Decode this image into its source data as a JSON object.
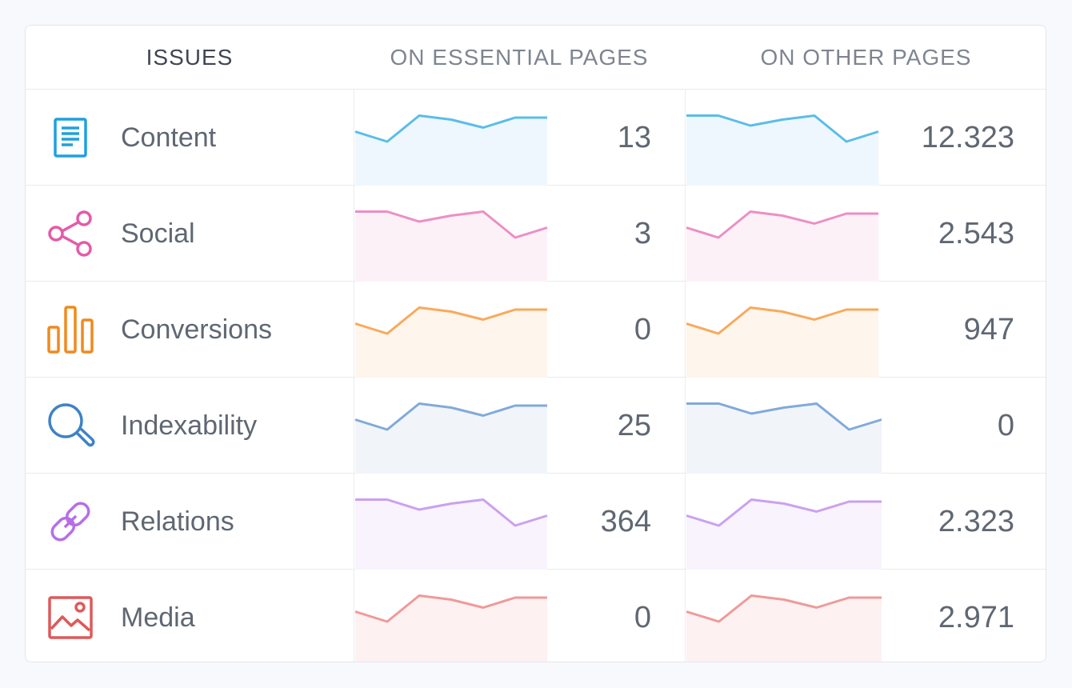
{
  "header": {
    "issues": "ISSUES",
    "essential": "ON ESSENTIAL PAGES",
    "other": "ON OTHER PAGES"
  },
  "rows": [
    {
      "label": "Content",
      "icon": "document-icon",
      "color": "#5bbde8",
      "fill": "#eef7fd",
      "essential_value": "13",
      "other_value": "12.323",
      "essential_trend": [
        0.55,
        0.3,
        0.95,
        0.85,
        0.65,
        0.9,
        0.9
      ],
      "other_trend": [
        0.95,
        0.95,
        0.7,
        0.85,
        0.95,
        0.3,
        0.55
      ]
    },
    {
      "label": "Social",
      "icon": "share-icon",
      "color": "#ec8fc4",
      "fill": "#fdf1f8",
      "essential_value": "3",
      "other_value": "2.543",
      "essential_trend": [
        0.95,
        0.95,
        0.7,
        0.85,
        0.95,
        0.3,
        0.55
      ],
      "other_trend": [
        0.55,
        0.3,
        0.95,
        0.85,
        0.65,
        0.9,
        0.9
      ]
    },
    {
      "label": "Conversions",
      "icon": "bar-chart-icon",
      "color": "#f7aa5c",
      "fill": "#fef5ec",
      "essential_value": "0",
      "other_value": "947",
      "essential_trend": [
        0.55,
        0.3,
        0.95,
        0.85,
        0.65,
        0.9,
        0.9
      ],
      "other_trend": [
        0.55,
        0.3,
        0.95,
        0.85,
        0.65,
        0.9,
        0.9
      ]
    },
    {
      "label": "Indexability",
      "icon": "search-icon",
      "color": "#82aad9",
      "fill": "#f1f5fa",
      "essential_value": "25",
      "other_value": "0",
      "essential_trend": [
        0.55,
        0.3,
        0.95,
        0.85,
        0.65,
        0.9,
        0.9
      ],
      "other_trend": [
        0.95,
        0.95,
        0.7,
        0.85,
        0.95,
        0.3,
        0.55
      ]
    },
    {
      "label": "Relations",
      "icon": "link-icon",
      "color": "#cba1ef",
      "fill": "#f8f3fd",
      "essential_value": "364",
      "other_value": "2.323",
      "essential_trend": [
        0.95,
        0.95,
        0.7,
        0.85,
        0.95,
        0.3,
        0.55
      ],
      "other_trend": [
        0.55,
        0.3,
        0.95,
        0.85,
        0.65,
        0.9,
        0.9
      ]
    },
    {
      "label": "Media",
      "icon": "image-icon",
      "color": "#ef9a9a",
      "fill": "#fdf1f1",
      "essential_value": "0",
      "other_value": "2.971",
      "essential_trend": [
        0.55,
        0.3,
        0.95,
        0.85,
        0.65,
        0.9,
        0.9
      ],
      "other_trend": [
        0.55,
        0.3,
        0.95,
        0.85,
        0.65,
        0.9,
        0.9
      ]
    }
  ],
  "icon_colors": {
    "document": "#1fa0e0",
    "share": "#e55aa8",
    "bar_chart": "#f08a1d",
    "search": "#3d82c7",
    "link": "#b66ee8",
    "image": "#dd5a5a"
  }
}
